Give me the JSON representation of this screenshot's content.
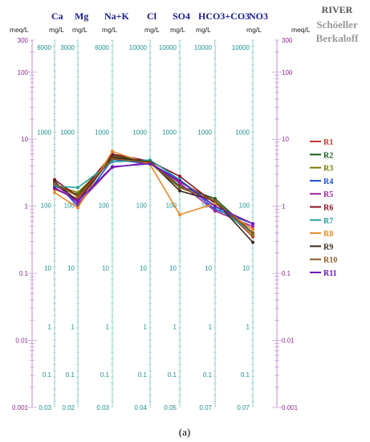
{
  "chart_data": {
    "type": "line",
    "title": "RIVER",
    "subtitle_lines": [
      "Schöeller",
      "Berkaloff"
    ],
    "caption": "(a)",
    "meq_label": "meq/L",
    "meq_ticks": [
      "300",
      "100",
      "10",
      "1",
      "0.1",
      "0.01",
      "0.001"
    ],
    "axes": [
      {
        "name": "Ca",
        "unit": "mg/L",
        "color": "#1f8f8f",
        "ticks": [
          "6000",
          "1000",
          "100",
          "10",
          "1",
          "0.1",
          "0.03"
        ]
      },
      {
        "name": "Mg",
        "unit": "mg/L",
        "color": "#1f8f8f",
        "ticks": [
          "3000",
          "1000",
          "100",
          "10",
          "1",
          "0.1",
          "0.02"
        ]
      },
      {
        "name": "Na+K",
        "unit": "mg/L",
        "color": "#1f8f8f",
        "ticks": [
          "6000",
          "1000",
          "100",
          "10",
          "1",
          "0.1",
          "0.03"
        ]
      },
      {
        "name": "Cl",
        "unit": "mg/L",
        "color": "#1f8f8f",
        "ticks": [
          "10000",
          "1000",
          "100",
          "10",
          "1",
          "0.1",
          "0.04"
        ]
      },
      {
        "name": "SO4",
        "unit": "mg/L",
        "color": "#1f8f8f",
        "ticks": [
          "10000",
          "1000",
          "100",
          "10",
          "1",
          "0.1",
          "0.05"
        ]
      },
      {
        "name": "HCO3+CO3",
        "unit": "mg/L",
        "color": "#1f8f8f",
        "ticks": [
          "10000",
          "1000",
          "100",
          "10",
          "1",
          "0.1",
          "0.07"
        ]
      },
      {
        "name": "NO3",
        "unit": "mg/L",
        "color": "#1f8f8f",
        "ticks": [
          "10000",
          "1000",
          "100",
          "10",
          "1",
          "0.1",
          "0.07"
        ]
      }
    ],
    "ylim_meq": [
      0.001,
      300
    ],
    "y_scale": "log",
    "legend_position": "right",
    "series": [
      {
        "name": "R1",
        "color": "#c0392b",
        "values": [
          1.8,
          1.3,
          5.5,
          4.5,
          2.3,
          1.2,
          0.35
        ]
      },
      {
        "name": "R2",
        "color": "#1b5e20",
        "values": [
          2.0,
          1.5,
          5.8,
          4.6,
          2.0,
          1.3,
          0.4
        ]
      },
      {
        "name": "R3",
        "color": "#7a7a00",
        "values": [
          2.1,
          1.6,
          5.2,
          4.4,
          1.9,
          1.2,
          0.38
        ]
      },
      {
        "name": "R4",
        "color": "#1f4fd1",
        "values": [
          2.4,
          1.0,
          5.0,
          4.3,
          2.5,
          0.9,
          0.55
        ]
      },
      {
        "name": "R5",
        "color": "#a0249e",
        "values": [
          2.2,
          1.1,
          3.8,
          4.5,
          2.2,
          0.85,
          0.5
        ]
      },
      {
        "name": "R6",
        "color": "#8b1020",
        "values": [
          2.5,
          1.4,
          6.0,
          4.7,
          2.8,
          1.1,
          0.45
        ]
      },
      {
        "name": "R7",
        "color": "#2aa0a0",
        "values": [
          2.0,
          1.9,
          4.6,
          4.9,
          2.5,
          1.0,
          0.4
        ]
      },
      {
        "name": "R8",
        "color": "#e8892a",
        "values": [
          1.6,
          0.95,
          6.6,
          4.2,
          0.75,
          1.1,
          0.45
        ]
      },
      {
        "name": "R9",
        "color": "#3a2a20",
        "values": [
          2.3,
          1.2,
          5.4,
          4.6,
          1.7,
          1.2,
          0.29
        ]
      },
      {
        "name": "R10",
        "color": "#8a5a20",
        "values": [
          2.2,
          1.4,
          5.1,
          4.5,
          1.9,
          1.2,
          0.4
        ]
      },
      {
        "name": "R11",
        "color": "#6a1ab8",
        "values": [
          1.9,
          1.2,
          3.9,
          4.3,
          2.4,
          1.0,
          0.55
        ]
      }
    ]
  }
}
